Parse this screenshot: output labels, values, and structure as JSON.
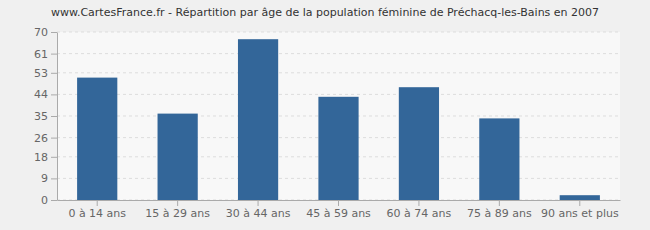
{
  "chart_data": {
    "type": "bar",
    "title": "www.CartesFrance.fr - Répartition par âge de la population féminine de Préchacq-les-Bains en 2007",
    "categories": [
      "0 à 14 ans",
      "15 à 29 ans",
      "30 à 44 ans",
      "45 à 59 ans",
      "60 à 74 ans",
      "75 à 89 ans",
      "90 ans et plus"
    ],
    "values": [
      51,
      36,
      67,
      43,
      47,
      34,
      2
    ],
    "color": "#336699",
    "ylim": [
      0,
      70
    ],
    "yticks": [
      0,
      9,
      18,
      26,
      35,
      44,
      53,
      61,
      70
    ],
    "grid": true
  }
}
